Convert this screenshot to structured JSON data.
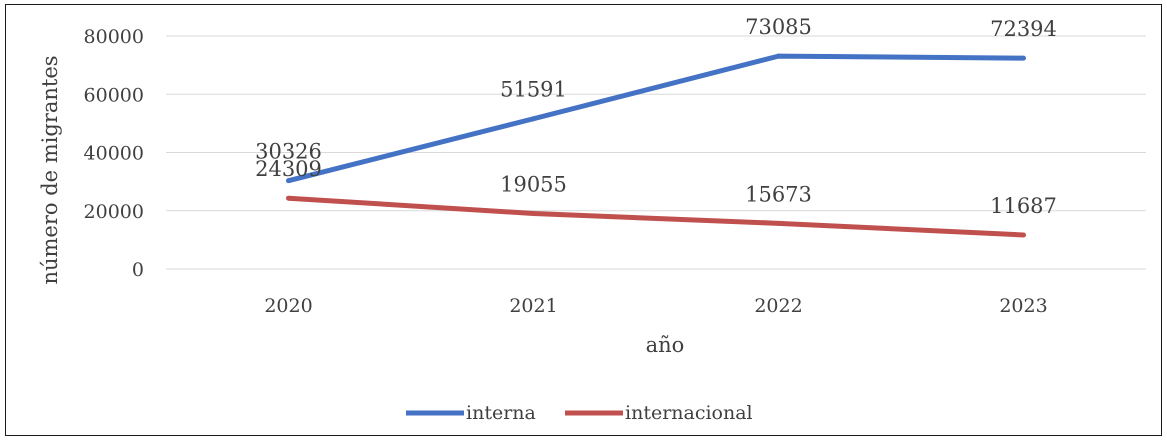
{
  "chart_data": {
    "type": "line",
    "categories": [
      "2020",
      "2021",
      "2022",
      "2023"
    ],
    "series": [
      {
        "name": "interna",
        "values": [
          30326,
          51591,
          73085,
          72394
        ],
        "color": "#4472c4"
      },
      {
        "name": "internacional",
        "values": [
          24309,
          19055,
          15673,
          11687
        ],
        "color": "#c0504d"
      }
    ],
    "ylim": [
      0,
      80000
    ],
    "yticks": [
      0,
      20000,
      40000,
      60000,
      80000
    ],
    "xlabel": "año",
    "ylabel": "número de migrantes",
    "grid": true,
    "legend_position": "bottom"
  },
  "colors": {
    "gridline": "#d9d9d9",
    "text": "#404040"
  }
}
